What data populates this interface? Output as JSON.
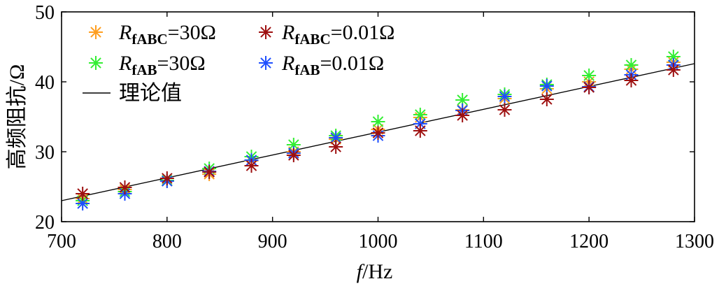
{
  "chart_data": {
    "type": "scatter",
    "xlabel_italic": "f",
    "xlabel_unit": "/Hz",
    "ylabel": "高频阻抗/Ω",
    "xlim": [
      700,
      1300
    ],
    "ylim": [
      20,
      50
    ],
    "xticks": [
      700,
      800,
      900,
      1000,
      1100,
      1200,
      1300
    ],
    "yticks": [
      20,
      30,
      40,
      50
    ],
    "grid": false,
    "legend_position": "top-left",
    "series": [
      {
        "name": "R_fABC=30Ω",
        "legend_main": "R",
        "legend_sub": "fABC",
        "legend_value": "=30Ω",
        "color": "#FF9E1F",
        "marker": "asterisk",
        "x": [
          720,
          760,
          800,
          840,
          880,
          920,
          960,
          1000,
          1040,
          1080,
          1120,
          1160,
          1200,
          1240,
          1280
        ],
        "y": [
          23.3,
          24.6,
          25.8,
          26.8,
          28.7,
          30.0,
          31.8,
          33.2,
          34.9,
          36.0,
          37.6,
          39.0,
          40.0,
          41.8,
          42.8
        ]
      },
      {
        "name": "R_fABC=0.01Ω",
        "legend_main": "R",
        "legend_sub": "fABC",
        "legend_value": "=0.01Ω",
        "color": "#9E1010",
        "marker": "asterisk",
        "x": [
          720,
          760,
          800,
          840,
          880,
          920,
          960,
          1000,
          1040,
          1080,
          1120,
          1160,
          1200,
          1240,
          1280
        ],
        "y": [
          24.0,
          24.9,
          26.2,
          27.1,
          28.0,
          29.5,
          30.7,
          32.7,
          33.0,
          35.2,
          36.0,
          37.5,
          39.2,
          40.2,
          41.7
        ]
      },
      {
        "name": "R_fAB=30Ω",
        "legend_main": "R",
        "legend_sub": "fAB",
        "legend_value": "=30Ω",
        "color": "#33EE33",
        "marker": "asterisk",
        "x": [
          720,
          760,
          800,
          840,
          880,
          920,
          960,
          1000,
          1040,
          1080,
          1120,
          1160,
          1200,
          1240,
          1280
        ],
        "y": [
          23.0,
          24.3,
          25.9,
          27.6,
          29.3,
          31.0,
          32.3,
          34.3,
          35.3,
          37.4,
          38.2,
          39.6,
          40.9,
          42.4,
          43.6
        ]
      },
      {
        "name": "R_fAB=0.01Ω",
        "legend_main": "R",
        "legend_sub": "fAB",
        "legend_value": "=0.01Ω",
        "color": "#1F4FFF",
        "marker": "asterisk",
        "x": [
          720,
          760,
          800,
          840,
          880,
          920,
          960,
          1000,
          1040,
          1080,
          1120,
          1160,
          1200,
          1240,
          1280
        ],
        "y": [
          22.6,
          24.0,
          25.8,
          27.2,
          28.8,
          29.8,
          32.0,
          32.3,
          34.0,
          35.9,
          37.9,
          39.4,
          39.3,
          41.0,
          42.4
        ]
      }
    ],
    "theory_line": {
      "name": "理论值",
      "color": "#000000",
      "x": [
        700,
        1300
      ],
      "y": [
        23.0,
        42.6
      ]
    }
  }
}
